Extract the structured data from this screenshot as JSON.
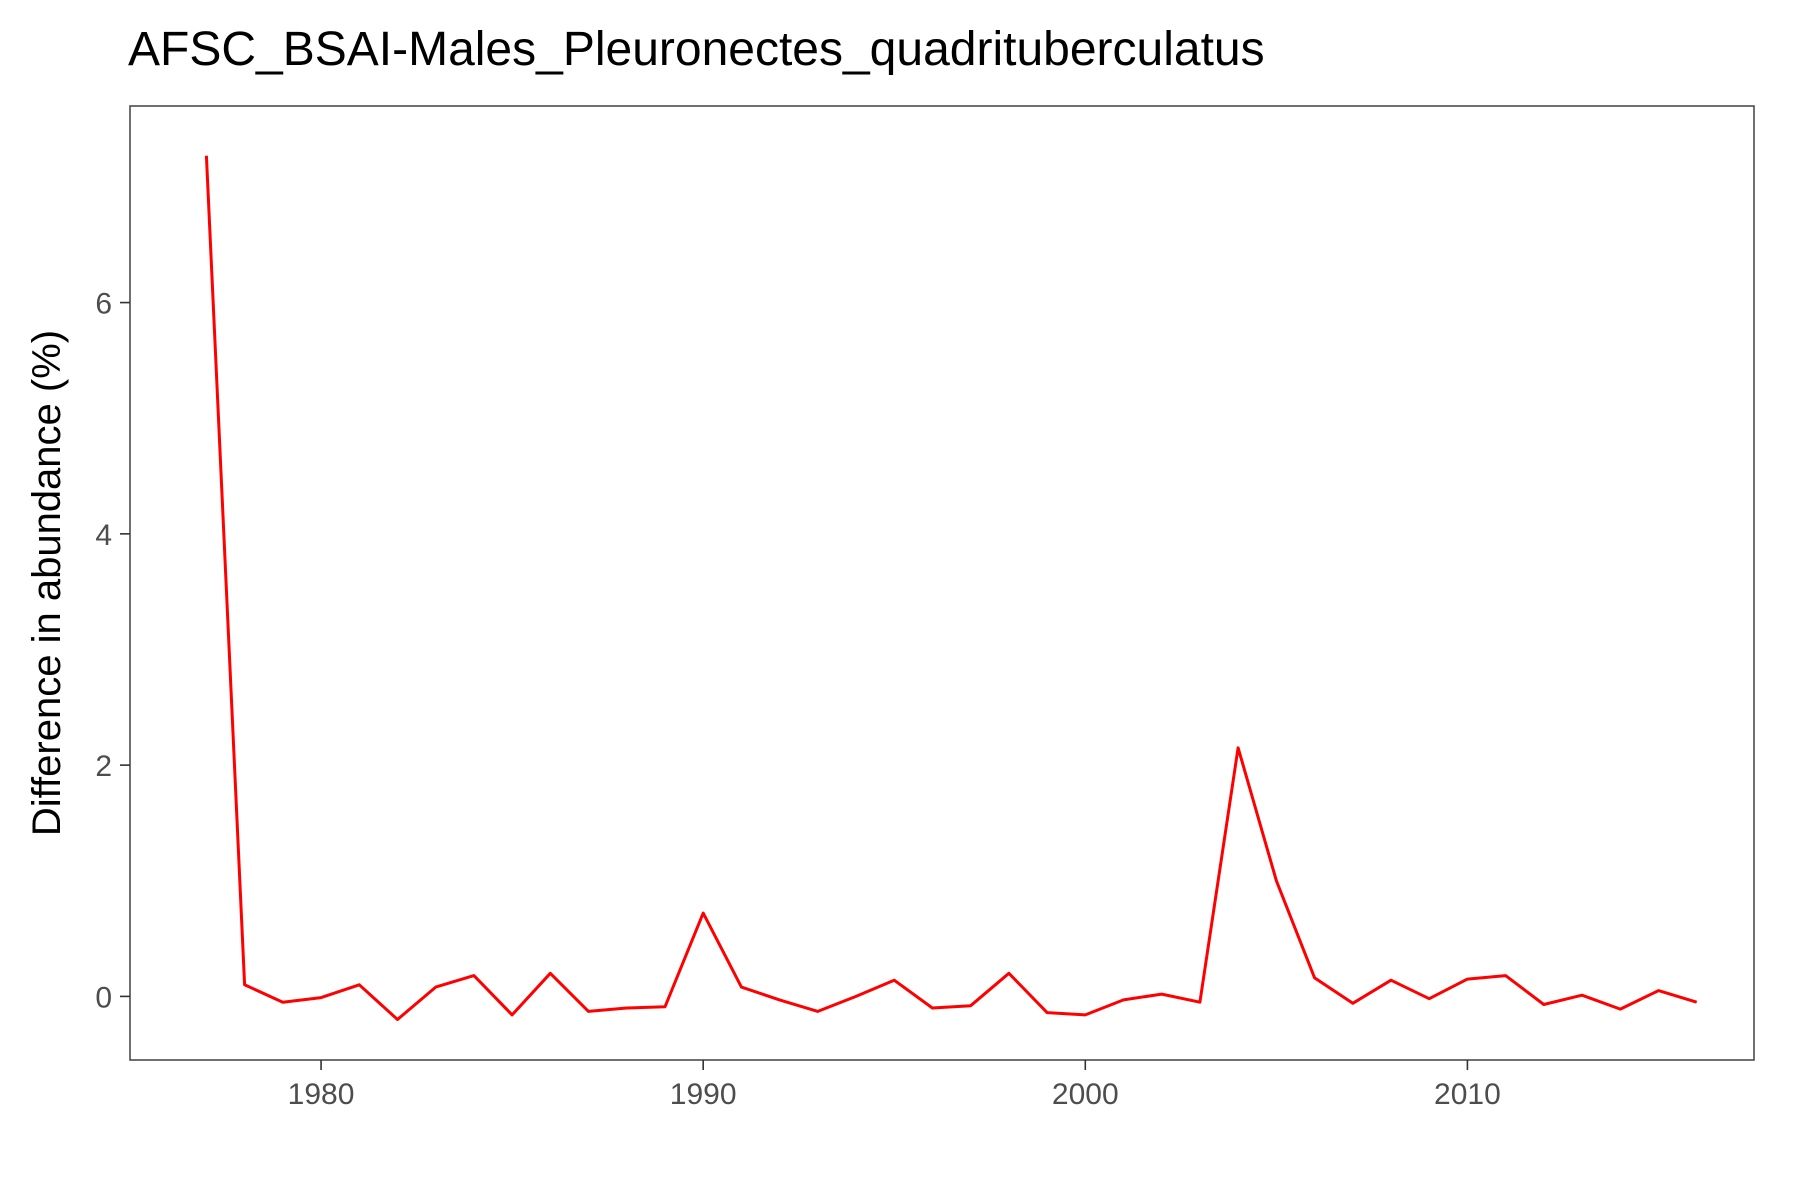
{
  "chart_data": {
    "type": "line",
    "title": "AFSC_BSAI-Males_Pleuronectes_quadrituberculatus",
    "xlabel": "",
    "ylabel": "Difference in abundance (%)",
    "xlim": [
      1975,
      2017.5
    ],
    "ylim": [
      -0.55,
      7.7
    ],
    "x_ticks": [
      1980,
      1990,
      2000,
      2010
    ],
    "y_ticks": [
      0,
      2,
      4,
      6
    ],
    "grid": false,
    "legend": "none",
    "series": [
      {
        "color": "#ff0000",
        "x": [
          1977,
          1978,
          1979,
          1980,
          1981,
          1982,
          1983,
          1984,
          1985,
          1986,
          1987,
          1988,
          1989,
          1990,
          1991,
          1992,
          1993,
          1994,
          1995,
          1996,
          1997,
          1998,
          1999,
          2000,
          2001,
          2002,
          2003,
          2004,
          2005,
          2006,
          2007,
          2008,
          2009,
          2010,
          2011,
          2012,
          2013,
          2014,
          2015,
          2016
        ],
        "y": [
          7.27,
          0.1,
          -0.05,
          -0.01,
          0.1,
          -0.2,
          0.08,
          0.18,
          -0.16,
          0.2,
          -0.13,
          -0.1,
          -0.09,
          0.72,
          0.08,
          -0.03,
          -0.13,
          0.0,
          0.14,
          -0.1,
          -0.08,
          0.2,
          -0.14,
          -0.16,
          -0.03,
          0.02,
          -0.05,
          2.15,
          1.0,
          0.16,
          -0.06,
          0.14,
          -0.02,
          0.15,
          0.18,
          -0.07,
          0.01,
          -0.11,
          0.05,
          -0.05
        ]
      }
    ]
  }
}
